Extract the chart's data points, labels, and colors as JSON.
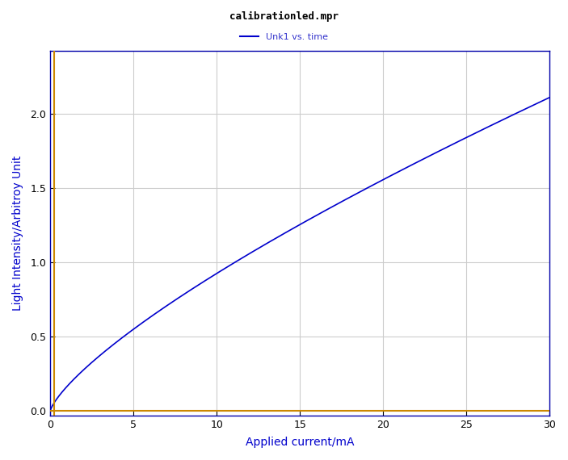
{
  "title": "calibrationled.mpr",
  "legend_label": "Unk1 vs. time",
  "xlabel": "Applied current/mA",
  "ylabel": "Light Intensity/Arbitroy Unit",
  "xlim": [
    0,
    30
  ],
  "ylim": [
    -0.05,
    2.4
  ],
  "ylim_display": [
    0,
    2.4
  ],
  "x_ticks": [
    0,
    5,
    10,
    15,
    20,
    25,
    30
  ],
  "y_ticks": [
    0,
    0.5,
    1.0,
    1.5,
    2.0
  ],
  "background_color": "#ffffff",
  "plot_bg_color": "#ffffff",
  "line_color": "#0000cc",
  "vline_color": "#cc8800",
  "hline_color": "#aaaaaa",
  "title_color": "#000000",
  "legend_color": "#3333cc",
  "axis_label_color": "#0000cc",
  "tick_label_color": "#000000",
  "grid_color": "#cccccc",
  "title_fontsize": 9,
  "legend_fontsize": 8,
  "axis_label_fontsize": 10,
  "tick_fontsize": 9,
  "line_width": 1.2,
  "power_a": 0.62,
  "vline_x": 0.22
}
